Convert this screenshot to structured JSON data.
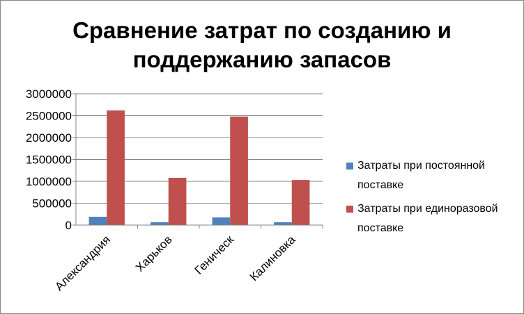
{
  "chart_data": {
    "type": "bar",
    "title": "Сравнение затрат по созданию и поддержанию запасов",
    "categories": [
      "Александрия",
      "Харьков",
      "Геническ",
      "Калиновка"
    ],
    "series": [
      {
        "name": "Затраты при постоянной поставке",
        "color": "#4f81bd",
        "values": [
          190000,
          65000,
          175000,
          65000
        ]
      },
      {
        "name": "Затраты при единоразовой поставке",
        "color": "#c0504d",
        "values": [
          2620000,
          1080000,
          2480000,
          1030000
        ]
      }
    ],
    "ylim": [
      0,
      3000000
    ],
    "yticks": [
      0,
      500000,
      1000000,
      1500000,
      2000000,
      2500000,
      3000000
    ],
    "grid": true,
    "legend": "right"
  }
}
